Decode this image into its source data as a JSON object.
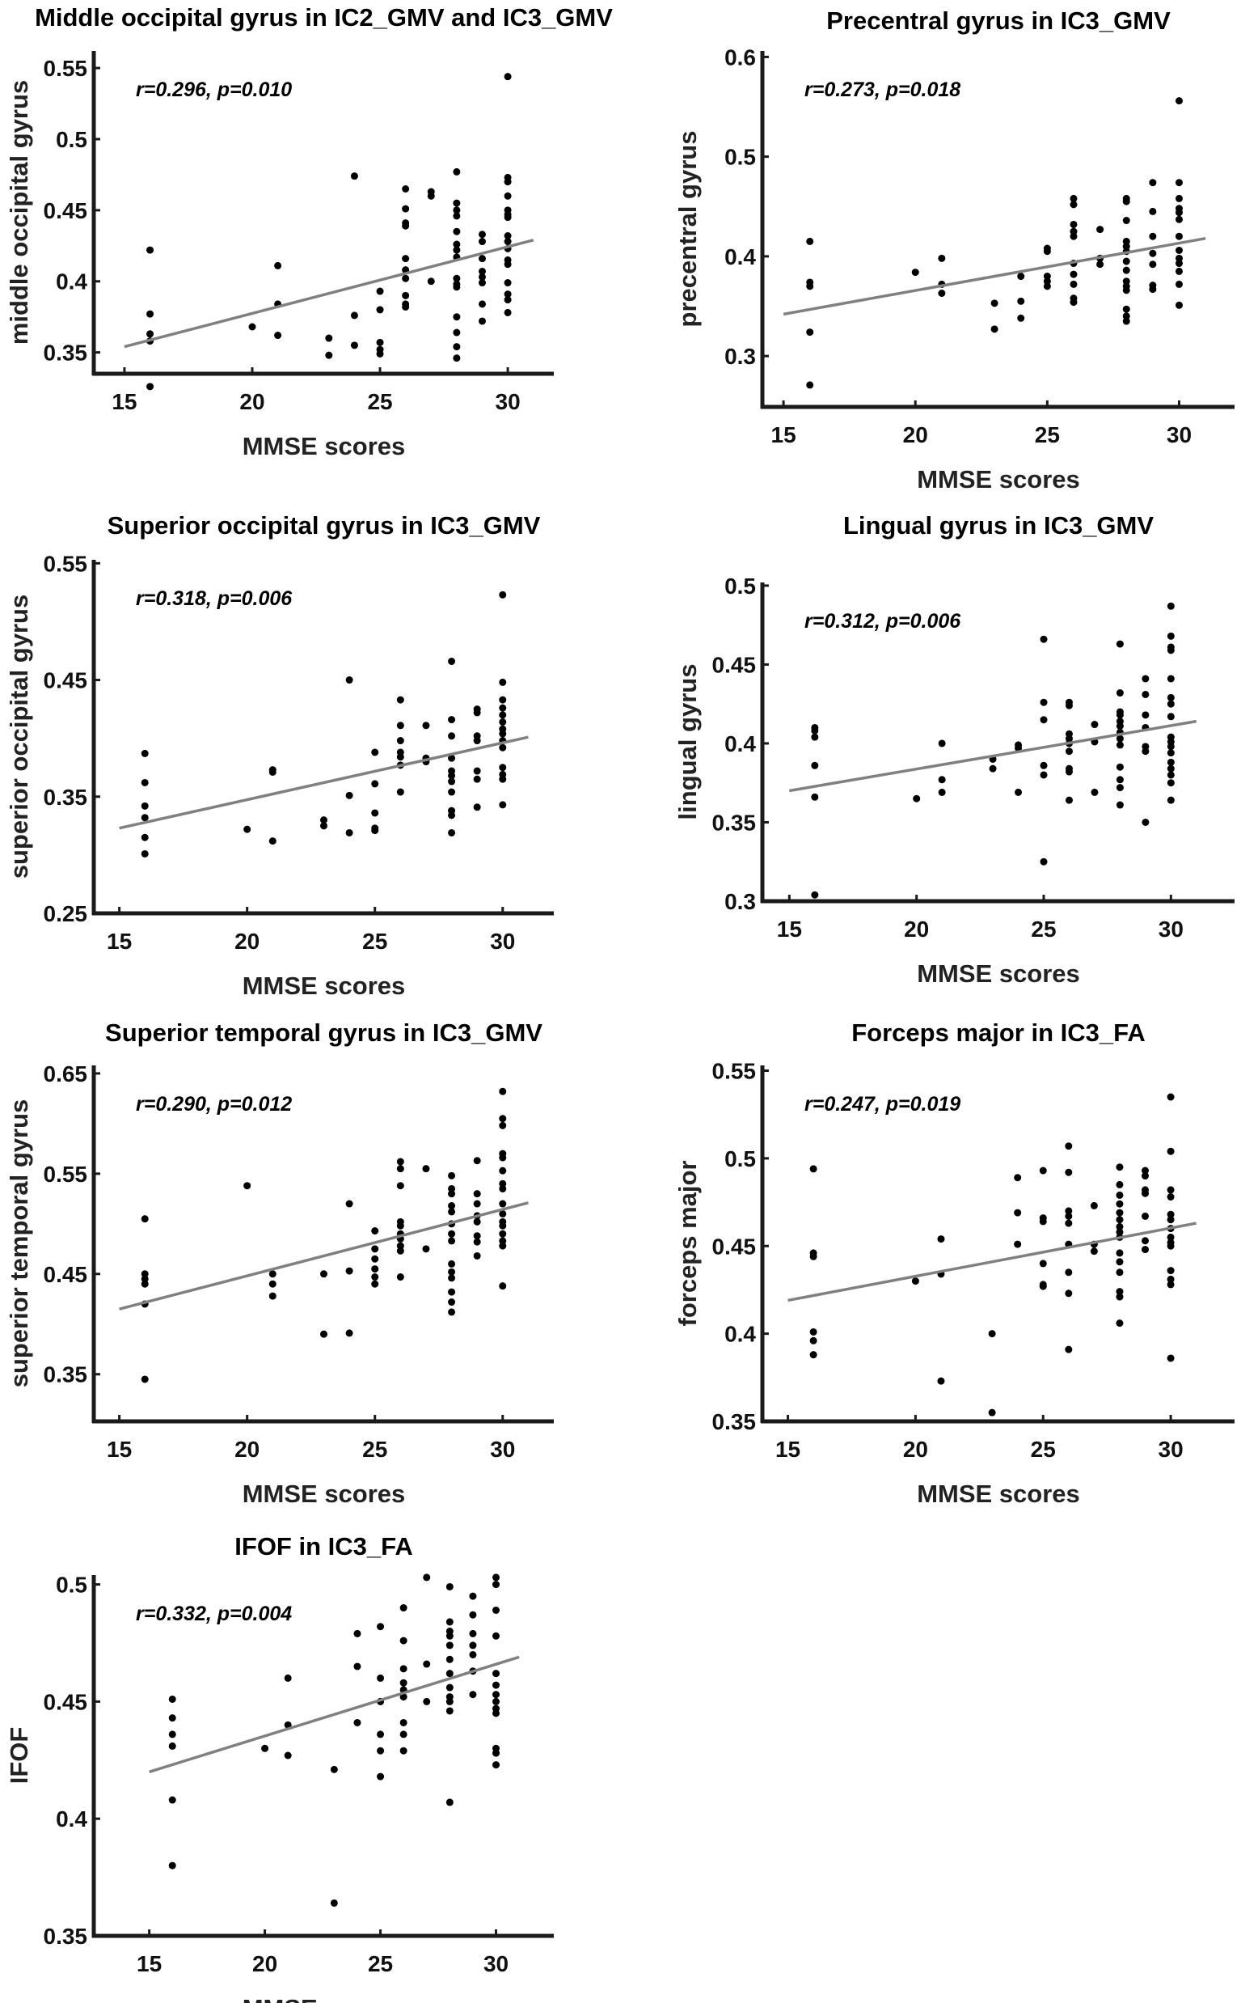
{
  "chart_data": [
    {
      "type": "scatter",
      "title": "Middle occipital gyrus in IC2_GMV and IC3_GMV",
      "xlabel": "MMSE scores",
      "ylabel": "middle occipital gyrus",
      "annotation": "r=0.296, p=0.010",
      "xlim": [
        13.8,
        31.8
      ],
      "ylim": [
        0.335,
        0.562
      ],
      "xticks": [
        15,
        20,
        25,
        30
      ],
      "yticks": [
        0.35,
        0.4,
        0.45,
        0.5,
        0.55
      ],
      "ytick_labels": [
        "0.35",
        "0.4",
        "0.45",
        "0.5",
        "0.55"
      ],
      "fit_line": {
        "x": [
          15,
          31
        ],
        "y": [
          0.354,
          0.429
        ]
      },
      "groups": [
        {
          "x": 16,
          "y": [
            0.422,
            0.377,
            0.363,
            0.358,
            0.326
          ]
        },
        {
          "x": 20,
          "y": [
            0.368
          ]
        },
        {
          "x": 21,
          "y": [
            0.411,
            0.384,
            0.362
          ]
        },
        {
          "x": 23,
          "y": [
            0.36,
            0.348
          ]
        },
        {
          "x": 24,
          "y": [
            0.474,
            0.376,
            0.355
          ]
        },
        {
          "x": 25,
          "y": [
            0.393,
            0.38,
            0.357,
            0.352,
            0.349
          ]
        },
        {
          "x": 26,
          "y": [
            0.465,
            0.451,
            0.441,
            0.439,
            0.416,
            0.408,
            0.402,
            0.39,
            0.384,
            0.382
          ]
        },
        {
          "x": 27,
          "y": [
            0.463,
            0.46,
            0.4
          ]
        },
        {
          "x": 28,
          "y": [
            0.477,
            0.455,
            0.45,
            0.446,
            0.435,
            0.426,
            0.422,
            0.417,
            0.402,
            0.398,
            0.396,
            0.375,
            0.364,
            0.354,
            0.346
          ]
        },
        {
          "x": 29,
          "y": [
            0.433,
            0.428,
            0.416,
            0.407,
            0.403,
            0.399,
            0.384,
            0.372
          ]
        },
        {
          "x": 30,
          "y": [
            0.544,
            0.473,
            0.47,
            0.46,
            0.45,
            0.447,
            0.445,
            0.432,
            0.428,
            0.423,
            0.415,
            0.412,
            0.399,
            0.391,
            0.387,
            0.378
          ]
        }
      ]
    },
    {
      "type": "scatter",
      "title": "Precentral gyrus in IC3_GMV",
      "xlabel": "MMSE scores",
      "ylabel": "precentral gyrus",
      "annotation": "r=0.273, p=0.018",
      "xlim": [
        14.2,
        32.1
      ],
      "ylim": [
        0.249,
        0.606
      ],
      "xticks": [
        15,
        20,
        25,
        30
      ],
      "yticks": [
        0.3,
        0.4,
        0.5,
        0.6
      ],
      "ytick_labels": [
        "0.3",
        "0.4",
        "0.5",
        "0.6"
      ],
      "fit_line": {
        "x": [
          15,
          31
        ],
        "y": [
          0.342,
          0.418
        ]
      },
      "groups": [
        {
          "x": 16,
          "y": [
            0.415,
            0.374,
            0.37,
            0.324,
            0.271
          ]
        },
        {
          "x": 20,
          "y": [
            0.384
          ]
        },
        {
          "x": 21,
          "y": [
            0.398,
            0.372,
            0.363
          ]
        },
        {
          "x": 23,
          "y": [
            0.353,
            0.327
          ]
        },
        {
          "x": 24,
          "y": [
            0.38,
            0.355,
            0.338
          ]
        },
        {
          "x": 25,
          "y": [
            0.408,
            0.405,
            0.38,
            0.375,
            0.37
          ]
        },
        {
          "x": 26,
          "y": [
            0.458,
            0.452,
            0.432,
            0.425,
            0.42,
            0.393,
            0.382,
            0.372,
            0.358,
            0.354
          ]
        },
        {
          "x": 27,
          "y": [
            0.427,
            0.398,
            0.392
          ]
        },
        {
          "x": 28,
          "y": [
            0.458,
            0.455,
            0.436,
            0.415,
            0.41,
            0.405,
            0.395,
            0.386,
            0.375,
            0.37,
            0.366,
            0.347,
            0.34,
            0.335
          ]
        },
        {
          "x": 29,
          "y": [
            0.474,
            0.445,
            0.42,
            0.403,
            0.392,
            0.371,
            0.367
          ]
        },
        {
          "x": 30,
          "y": [
            0.556,
            0.474,
            0.458,
            0.448,
            0.444,
            0.437,
            0.42,
            0.406,
            0.398,
            0.393,
            0.385,
            0.372,
            0.351
          ]
        }
      ]
    },
    {
      "type": "scatter",
      "title": "Superior occipital gyrus in IC3_GMV",
      "xlabel": "MMSE scores",
      "ylabel": "superior occipital gyrus",
      "annotation": "r=0.318, p=0.006",
      "xlim": [
        14.0,
        32.0
      ],
      "ylim": [
        0.25,
        0.553
      ],
      "xticks": [
        15,
        20,
        25,
        30
      ],
      "yticks": [
        0.25,
        0.35,
        0.45,
        0.55
      ],
      "ytick_labels": [
        "0.25",
        "0.35",
        "0.45",
        "0.55"
      ],
      "fit_line": {
        "x": [
          15,
          31
        ],
        "y": [
          0.323,
          0.401
        ]
      },
      "groups": [
        {
          "x": 16,
          "y": [
            0.387,
            0.362,
            0.342,
            0.332,
            0.315,
            0.301
          ]
        },
        {
          "x": 20,
          "y": [
            0.322
          ]
        },
        {
          "x": 21,
          "y": [
            0.373,
            0.371,
            0.312
          ]
        },
        {
          "x": 23,
          "y": [
            0.33,
            0.325
          ]
        },
        {
          "x": 24,
          "y": [
            0.45,
            0.351,
            0.319
          ]
        },
        {
          "x": 25,
          "y": [
            0.388,
            0.361,
            0.336,
            0.323,
            0.321
          ]
        },
        {
          "x": 26,
          "y": [
            0.433,
            0.411,
            0.398,
            0.388,
            0.384,
            0.377,
            0.354
          ]
        },
        {
          "x": 27,
          "y": [
            0.411,
            0.383,
            0.38
          ]
        },
        {
          "x": 28,
          "y": [
            0.466,
            0.416,
            0.402,
            0.383,
            0.372,
            0.368,
            0.363,
            0.354,
            0.338,
            0.334,
            0.319
          ]
        },
        {
          "x": 29,
          "y": [
            0.425,
            0.422,
            0.402,
            0.398,
            0.372,
            0.365,
            0.341
          ]
        },
        {
          "x": 30,
          "y": [
            0.523,
            0.448,
            0.433,
            0.426,
            0.42,
            0.414,
            0.408,
            0.404,
            0.398,
            0.392,
            0.375,
            0.369,
            0.365,
            0.343
          ]
        }
      ]
    },
    {
      "type": "scatter",
      "title": "Lingual gyrus in IC3_GMV",
      "xlabel": "MMSE scores",
      "ylabel": "lingual gyrus",
      "annotation": "r=0.312, p=0.006",
      "xlim": [
        13.94,
        32.5
      ],
      "ylim": [
        0.3,
        0.502
      ],
      "xticks": [
        15,
        20,
        25,
        30
      ],
      "yticks": [
        0.3,
        0.35,
        0.4,
        0.45,
        0.5
      ],
      "ytick_labels": [
        "0.3",
        "0.35",
        "0.4",
        "0.45",
        "0.5"
      ],
      "fit_line": {
        "x": [
          15,
          31
        ],
        "y": [
          0.37,
          0.414
        ]
      },
      "groups": [
        {
          "x": 16,
          "y": [
            0.41,
            0.408,
            0.404,
            0.386,
            0.366,
            0.304
          ]
        },
        {
          "x": 20,
          "y": [
            0.365
          ]
        },
        {
          "x": 21,
          "y": [
            0.4,
            0.377,
            0.369
          ]
        },
        {
          "x": 23,
          "y": [
            0.39,
            0.384
          ]
        },
        {
          "x": 24,
          "y": [
            0.399,
            0.397,
            0.369
          ]
        },
        {
          "x": 25,
          "y": [
            0.466,
            0.426,
            0.415,
            0.386,
            0.38,
            0.325
          ]
        },
        {
          "x": 26,
          "y": [
            0.426,
            0.424,
            0.406,
            0.403,
            0.4,
            0.395,
            0.384,
            0.382,
            0.364
          ]
        },
        {
          "x": 27,
          "y": [
            0.412,
            0.401,
            0.369
          ]
        },
        {
          "x": 28,
          "y": [
            0.463,
            0.432,
            0.42,
            0.418,
            0.414,
            0.411,
            0.407,
            0.403,
            0.399,
            0.385,
            0.377,
            0.372,
            0.361
          ]
        },
        {
          "x": 29,
          "y": [
            0.441,
            0.431,
            0.418,
            0.41,
            0.398,
            0.395,
            0.35
          ]
        },
        {
          "x": 30,
          "y": [
            0.487,
            0.468,
            0.461,
            0.459,
            0.441,
            0.429,
            0.425,
            0.417,
            0.404,
            0.401,
            0.398,
            0.394,
            0.388,
            0.384,
            0.38,
            0.375,
            0.364
          ]
        }
      ]
    },
    {
      "type": "scatter",
      "title": "Superior temporal gyrus in IC3_GMV",
      "xlabel": "MMSE scores",
      "ylabel": "superior temporal gyrus",
      "annotation": "r=0.290, p=0.012",
      "xlim": [
        14.0,
        32.0
      ],
      "ylim": [
        0.303,
        0.658
      ],
      "xticks": [
        15,
        20,
        25,
        30
      ],
      "yticks": [
        0.35,
        0.45,
        0.55,
        0.65
      ],
      "ytick_labels": [
        "0.35",
        "0.45",
        "0.55",
        "0.65"
      ],
      "fit_line": {
        "x": [
          15,
          31
        ],
        "y": [
          0.415,
          0.521
        ]
      },
      "groups": [
        {
          "x": 16,
          "y": [
            0.505,
            0.45,
            0.445,
            0.44,
            0.42,
            0.345
          ]
        },
        {
          "x": 20,
          "y": [
            0.538
          ]
        },
        {
          "x": 21,
          "y": [
            0.45,
            0.44,
            0.428
          ]
        },
        {
          "x": 23,
          "y": [
            0.45,
            0.39
          ]
        },
        {
          "x": 24,
          "y": [
            0.52,
            0.453,
            0.391
          ]
        },
        {
          "x": 25,
          "y": [
            0.493,
            0.475,
            0.465,
            0.455,
            0.447,
            0.44
          ]
        },
        {
          "x": 26,
          "y": [
            0.562,
            0.555,
            0.538,
            0.502,
            0.498,
            0.49,
            0.485,
            0.478,
            0.473,
            0.447
          ]
        },
        {
          "x": 27,
          "y": [
            0.555,
            0.475
          ]
        },
        {
          "x": 28,
          "y": [
            0.548,
            0.535,
            0.53,
            0.518,
            0.512,
            0.5,
            0.49,
            0.483,
            0.46,
            0.452,
            0.446,
            0.432,
            0.422,
            0.412
          ]
        },
        {
          "x": 29,
          "y": [
            0.563,
            0.53,
            0.52,
            0.508,
            0.502,
            0.488,
            0.482,
            0.468
          ]
        },
        {
          "x": 30,
          "y": [
            0.632,
            0.605,
            0.598,
            0.57,
            0.566,
            0.553,
            0.54,
            0.535,
            0.52,
            0.51,
            0.502,
            0.498,
            0.49,
            0.483,
            0.478,
            0.438
          ]
        }
      ]
    },
    {
      "type": "scatter",
      "title": "Forceps major in IC3_FA",
      "xlabel": "MMSE scores",
      "ylabel": "forceps major",
      "annotation": "r=0.247, p=0.019",
      "xlim": [
        14.0,
        32.5
      ],
      "ylim": [
        0.35,
        0.553
      ],
      "xticks": [
        15,
        20,
        25,
        30
      ],
      "yticks": [
        0.35,
        0.4,
        0.45,
        0.5,
        0.55
      ],
      "ytick_labels": [
        "0.35",
        "0.4",
        "0.45",
        "0.5",
        "0.55"
      ],
      "fit_line": {
        "x": [
          15,
          31
        ],
        "y": [
          0.419,
          0.463
        ]
      },
      "groups": [
        {
          "x": 16,
          "y": [
            0.494,
            0.446,
            0.444,
            0.401,
            0.396,
            0.388
          ]
        },
        {
          "x": 20,
          "y": [
            0.43
          ]
        },
        {
          "x": 21,
          "y": [
            0.454,
            0.434,
            0.373
          ]
        },
        {
          "x": 23,
          "y": [
            0.4,
            0.355
          ]
        },
        {
          "x": 24,
          "y": [
            0.489,
            0.469,
            0.451
          ]
        },
        {
          "x": 25,
          "y": [
            0.493,
            0.466,
            0.464,
            0.44,
            0.428,
            0.427
          ]
        },
        {
          "x": 26,
          "y": [
            0.507,
            0.492,
            0.47,
            0.467,
            0.463,
            0.451,
            0.435,
            0.423,
            0.391
          ]
        },
        {
          "x": 27,
          "y": [
            0.473,
            0.451,
            0.447
          ]
        },
        {
          "x": 28,
          "y": [
            0.495,
            0.485,
            0.479,
            0.474,
            0.469,
            0.465,
            0.461,
            0.458,
            0.455,
            0.446,
            0.441,
            0.435,
            0.424,
            0.421,
            0.406
          ]
        },
        {
          "x": 29,
          "y": [
            0.493,
            0.49,
            0.482,
            0.48,
            0.467,
            0.453,
            0.448
          ]
        },
        {
          "x": 30,
          "y": [
            0.535,
            0.504,
            0.482,
            0.478,
            0.468,
            0.465,
            0.46,
            0.455,
            0.452,
            0.45,
            0.436,
            0.431,
            0.428,
            0.386
          ]
        }
      ]
    },
    {
      "type": "scatter",
      "title": "IFOF in IC3_FA",
      "xlabel": "MMSE scores",
      "ylabel": "IFOF",
      "annotation": "r=0.332, p=0.004",
      "xlim": [
        12.6,
        32.5
      ],
      "ylim": [
        0.35,
        0.504
      ],
      "xticks": [
        15,
        20,
        25,
        30
      ],
      "yticks": [
        0.35,
        0.4,
        0.45,
        0.5
      ],
      "ytick_labels": [
        "0.35",
        "0.4",
        "0.45",
        "0.5"
      ],
      "fit_line": {
        "x": [
          15,
          31
        ],
        "y": [
          0.42,
          0.469
        ]
      },
      "groups": [
        {
          "x": 16,
          "y": [
            0.451,
            0.443,
            0.436,
            0.431,
            0.408,
            0.38
          ]
        },
        {
          "x": 20,
          "y": [
            0.43
          ]
        },
        {
          "x": 21,
          "y": [
            0.46,
            0.44,
            0.427
          ]
        },
        {
          "x": 23,
          "y": [
            0.421,
            0.364
          ]
        },
        {
          "x": 24,
          "y": [
            0.479,
            0.465,
            0.441
          ]
        },
        {
          "x": 25,
          "y": [
            0.482,
            0.46,
            0.45,
            0.436,
            0.429,
            0.418
          ]
        },
        {
          "x": 26,
          "y": [
            0.49,
            0.476,
            0.464,
            0.458,
            0.455,
            0.452,
            0.441,
            0.436,
            0.429
          ]
        },
        {
          "x": 27,
          "y": [
            0.503,
            0.466,
            0.45
          ]
        },
        {
          "x": 28,
          "y": [
            0.499,
            0.484,
            0.48,
            0.478,
            0.474,
            0.468,
            0.462,
            0.456,
            0.452,
            0.45,
            0.446,
            0.407
          ]
        },
        {
          "x": 29,
          "y": [
            0.495,
            0.487,
            0.479,
            0.474,
            0.47,
            0.463,
            0.453
          ]
        },
        {
          "x": 30,
          "y": [
            0.503,
            0.5,
            0.489,
            0.478,
            0.462,
            0.457,
            0.453,
            0.45,
            0.447,
            0.445,
            0.43,
            0.428,
            0.423
          ]
        }
      ]
    }
  ]
}
